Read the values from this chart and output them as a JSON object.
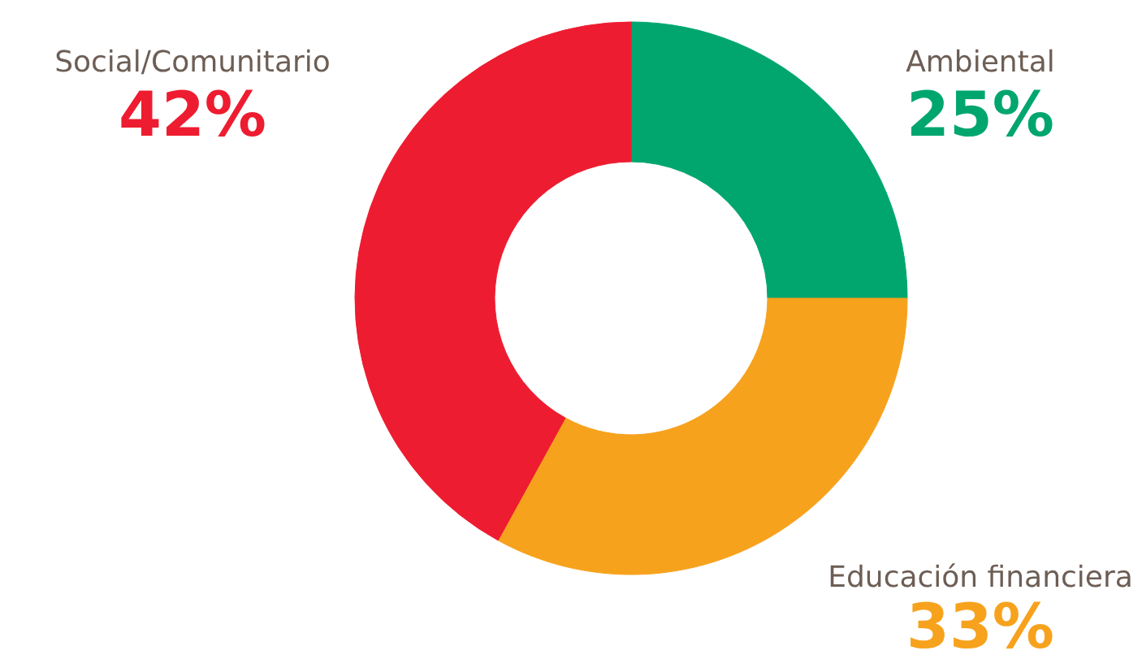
{
  "chart_data": {
    "type": "donut",
    "categories": [
      "Ambiental",
      "Educación financiera",
      "Social/Comunitario"
    ],
    "values": [
      25,
      33,
      42
    ],
    "colors": [
      "#00a66e",
      "#f7a21d",
      "#ee1c30"
    ],
    "value_labels": [
      "25%",
      "33%",
      "42%"
    ]
  }
}
